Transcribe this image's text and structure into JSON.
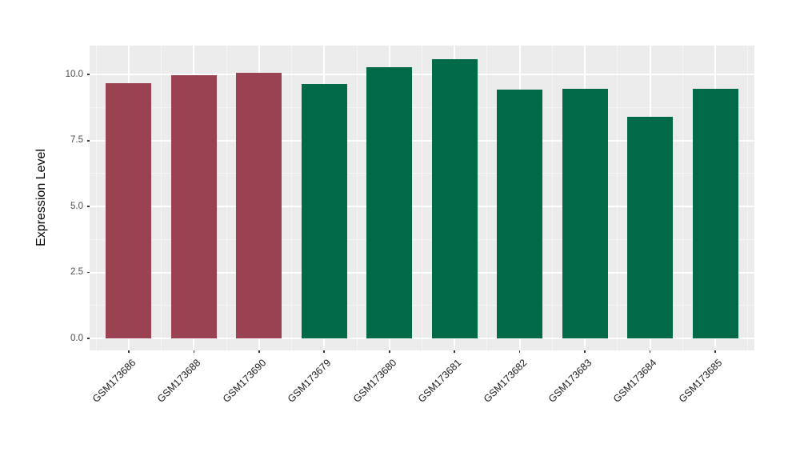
{
  "chart_data": {
    "type": "bar",
    "title": "",
    "xlabel": "",
    "ylabel": "Expression Level",
    "categories": [
      "GSM173686",
      "GSM173688",
      "GSM173690",
      "GSM173679",
      "GSM173680",
      "GSM173681",
      "GSM173682",
      "GSM173683",
      "GSM173684",
      "GSM173685"
    ],
    "values": [
      9.68,
      9.97,
      10.07,
      9.66,
      10.28,
      10.58,
      9.43,
      9.46,
      8.4,
      9.47
    ],
    "bar_colors": [
      "#9A4252",
      "#9A4252",
      "#9A4252",
      "#006947",
      "#006947",
      "#006947",
      "#006947",
      "#006947",
      "#006947",
      "#006947"
    ],
    "group_colors": {
      "first_group": "#9A4252",
      "second_group": "#006947"
    },
    "y_tick_labels": [
      "0.0",
      "2.5",
      "5.0",
      "7.5",
      "10.0"
    ],
    "y_ticks": [
      0.0,
      2.5,
      5.0,
      7.5,
      10.0
    ],
    "y_minor_ticks": [
      1.25,
      3.75,
      6.25,
      8.75
    ],
    "ylim": [
      -0.45,
      11.1
    ],
    "x_tick_rotation": 45,
    "grid": "white-on-gray",
    "legend_position": "none",
    "panel_background": "#EBEBEB",
    "grid_major_color": "#FFFFFF",
    "grid_minor_color": "#F5F5F5",
    "bar_width_fraction": 0.7
  }
}
